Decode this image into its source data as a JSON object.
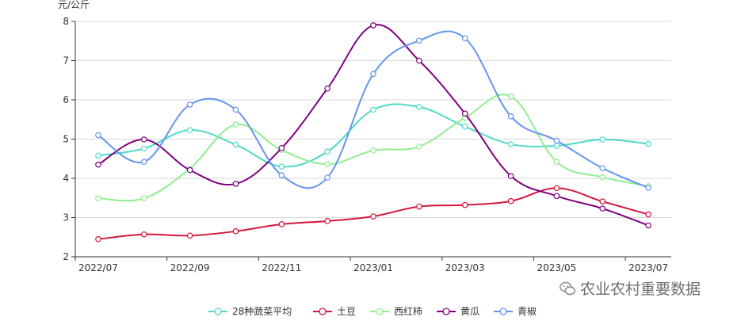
{
  "chart_data": {
    "type": "line",
    "unit_label": "元/公斤",
    "ylim": [
      2,
      8
    ],
    "yticks": [
      2,
      3,
      4,
      5,
      6,
      7,
      8
    ],
    "x": [
      "2022/07",
      "2022/08",
      "2022/09",
      "2022/10",
      "2022/11",
      "2022/12",
      "2023/01",
      "2023/02",
      "2023/03",
      "2023/04",
      "2023/05",
      "2023/06",
      "2023/07"
    ],
    "xtick_labels": [
      "2022/07",
      "2022/09",
      "2022/11",
      "2023/01",
      "2023/03",
      "2023/05",
      "2023/07"
    ],
    "grid": "horizontal",
    "legend_position": "bottom",
    "smooth": true,
    "series": [
      {
        "name": "28种蔬菜平均",
        "color": "#4fd9c8",
        "values": [
          4.58,
          4.76,
          5.23,
          4.86,
          4.3,
          4.68,
          5.75,
          5.82,
          5.32,
          4.87,
          4.83,
          4.99,
          4.88
        ]
      },
      {
        "name": "土豆",
        "color": "#d6163c",
        "values": [
          2.45,
          2.57,
          2.54,
          2.65,
          2.83,
          2.91,
          3.03,
          3.28,
          3.32,
          3.42,
          3.75,
          3.41,
          3.08
        ]
      },
      {
        "name": "西红柿",
        "color": "#90ee90",
        "values": [
          3.49,
          3.49,
          4.25,
          5.37,
          4.72,
          4.36,
          4.71,
          4.81,
          5.54,
          6.09,
          4.42,
          4.03,
          3.8
        ]
      },
      {
        "name": "黄瓜",
        "color": "#800080",
        "values": [
          4.35,
          4.99,
          4.21,
          3.86,
          4.77,
          6.29,
          7.9,
          7.0,
          5.65,
          4.06,
          3.55,
          3.23,
          2.8
        ]
      },
      {
        "name": "青椒",
        "color": "#6495ed",
        "values": [
          5.1,
          4.42,
          5.88,
          5.75,
          4.08,
          4.02,
          6.66,
          7.51,
          7.57,
          5.58,
          4.96,
          4.26,
          3.76
        ]
      }
    ]
  },
  "watermark": {
    "text": "农业农村重要数据"
  }
}
